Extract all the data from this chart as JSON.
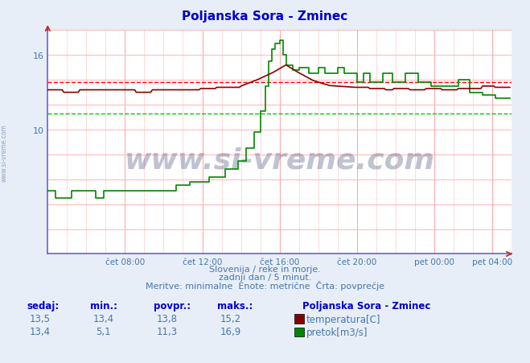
{
  "title": "Poljanska Sora - Zminec",
  "title_color": "#0000cc",
  "bg_color": "#e8eef8",
  "plot_bg_color": "#ffffff",
  "grid_color": "#ffaaaa",
  "grid_color_v": "#ddbbbb",
  "axis_color": "#0000aa",
  "text_color": "#4477aa",
  "temp_color": "#880000",
  "flow_color": "#008800",
  "avg_temp_color": "#ff0000",
  "avg_flow_color": "#00cc00",
  "xlim": [
    0,
    288
  ],
  "ylim": [
    0,
    18
  ],
  "yticks": [
    10,
    16
  ],
  "xtick_labels": [
    "čet 08:00",
    "čet 12:00",
    "čet 16:00",
    "čet 20:00",
    "pet 00:00",
    "pet 04:00"
  ],
  "xtick_positions": [
    48,
    96,
    144,
    192,
    240,
    276
  ],
  "avg_temp": 13.8,
  "avg_flow": 11.3,
  "subtitle1": "Slovenija / reke in morje.",
  "subtitle2": "zadnji dan / 5 minut.",
  "subtitle3": "Meritve: minimalne  Enote: metrične  Črta: povprečje",
  "legend_title": "Poljanska Sora - Zminec",
  "stat_headers": [
    "sedaj:",
    "min.:",
    "povpr.:",
    "maks.:"
  ],
  "temp_stats": [
    "13,5",
    "13,4",
    "13,8",
    "15,2"
  ],
  "flow_stats": [
    "13,4",
    "5,1",
    "11,3",
    "16,9"
  ],
  "temp_label": "temperatura[C]",
  "flow_label": "pretok[m3/s]"
}
